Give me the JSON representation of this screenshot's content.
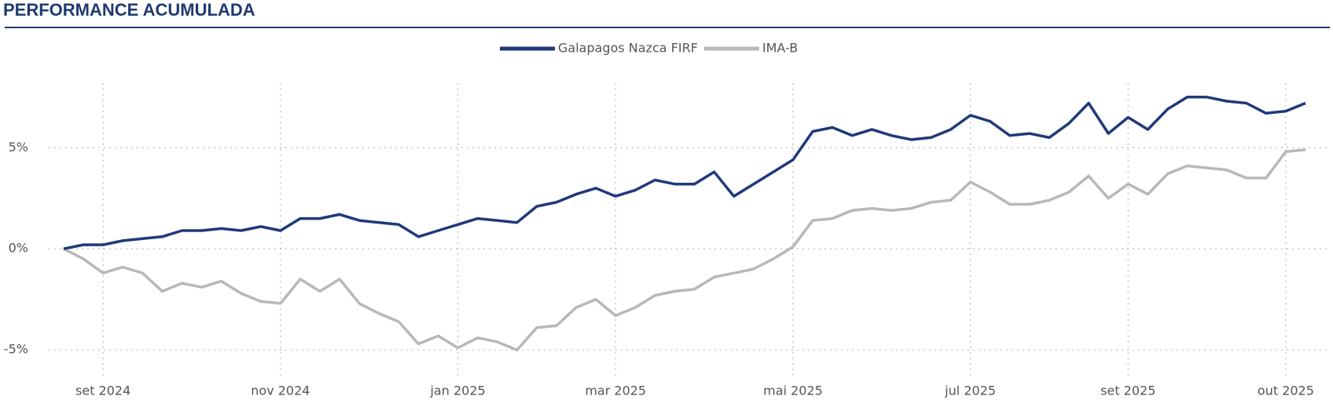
{
  "chart_data": {
    "type": "line",
    "title": "PERFORMANCE ACUMULADA",
    "categories": [
      null,
      null,
      "set 2024",
      null,
      null,
      null,
      null,
      null,
      null,
      null,
      null,
      "nov 2024",
      null,
      null,
      null,
      null,
      null,
      null,
      null,
      null,
      "jan 2025",
      null,
      null,
      null,
      null,
      null,
      null,
      null,
      "mar 2025",
      null,
      null,
      null,
      null,
      null,
      null,
      null,
      null,
      "mai 2025",
      null,
      null,
      null,
      null,
      null,
      null,
      null,
      null,
      "jul 2025",
      null,
      null,
      null,
      null,
      null,
      null,
      null,
      "set 2025",
      null,
      null,
      null,
      null,
      null,
      null,
      null,
      "out 2025",
      null
    ],
    "series": [
      {
        "name": "Galapagos Nazca FIRF",
        "color": "#1f3a7a",
        "values": [
          0,
          0.2,
          0.2,
          0.4,
          0.5,
          0.6,
          0.9,
          0.9,
          1.0,
          0.9,
          1.1,
          0.9,
          1.5,
          1.5,
          1.7,
          1.4,
          1.3,
          1.2,
          0.6,
          0.9,
          1.2,
          1.5,
          1.4,
          1.3,
          2.1,
          2.3,
          2.7,
          3.0,
          2.6,
          2.9,
          3.4,
          3.2,
          3.2,
          3.8,
          2.6,
          3.2,
          3.8,
          4.4,
          5.8,
          6.0,
          5.6,
          5.9,
          5.6,
          5.4,
          5.5,
          5.9,
          6.6,
          6.3,
          5.6,
          5.7,
          5.5,
          6.2,
          7.2,
          5.7,
          6.5,
          5.9,
          6.9,
          7.5,
          7.5,
          7.3,
          7.2,
          6.7,
          6.8,
          7.2
        ]
      },
      {
        "name": "IMA-B",
        "color": "#b8b8b8",
        "values": [
          0,
          -0.5,
          -1.2,
          -0.9,
          -1.2,
          -2.1,
          -1.7,
          -1.9,
          -1.6,
          -2.2,
          -2.6,
          -2.7,
          -1.5,
          -2.1,
          -1.5,
          -2.7,
          -3.2,
          -3.6,
          -4.7,
          -4.3,
          -4.9,
          -4.4,
          -4.6,
          -5.0,
          -3.9,
          -3.8,
          -2.9,
          -2.5,
          -3.3,
          -2.9,
          -2.3,
          -2.1,
          -2.0,
          -1.4,
          -1.2,
          -1.0,
          -0.5,
          0.1,
          1.4,
          1.5,
          1.9,
          2.0,
          1.9,
          2.0,
          2.3,
          2.4,
          3.3,
          2.8,
          2.2,
          2.2,
          2.4,
          2.8,
          3.6,
          2.5,
          3.2,
          2.7,
          3.7,
          4.1,
          4.0,
          3.9,
          3.5,
          3.5,
          4.8,
          4.9
        ]
      }
    ],
    "ylim": [
      -6,
      8.5
    ],
    "yticks": [
      {
        "value": -5,
        "label": "-5%"
      },
      {
        "value": 0,
        "label": "0%"
      },
      {
        "value": 5,
        "label": "5%"
      }
    ],
    "grid": true,
    "legend": "top"
  }
}
